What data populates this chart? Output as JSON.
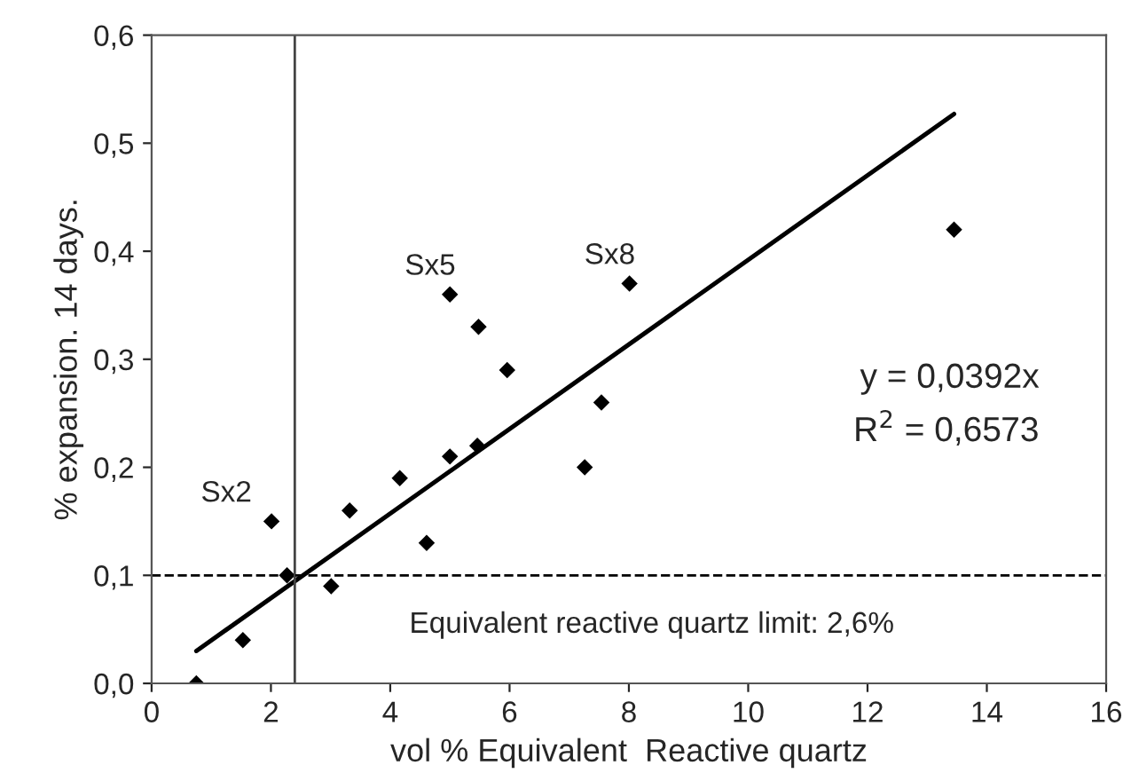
{
  "chart_data": {
    "type": "scatter",
    "xlabel": "vol % Equivalent  Reactive quartz",
    "ylabel": "% expansion. 14 days.",
    "series": [
      {
        "color": "#000000",
        "marker": "diamond",
        "x": [
          0.75,
          1.53,
          2.01,
          2.27,
          3.01,
          3.32,
          4.16,
          4.61,
          5.0,
          5.0,
          5.48,
          5.46,
          5.96,
          7.26,
          7.54,
          8.01,
          13.45
        ],
        "values": [
          0.0,
          0.04,
          0.15,
          0.1,
          0.09,
          0.16,
          0.19,
          0.13,
          0.21,
          0.36,
          0.33,
          0.22,
          0.29,
          0.2,
          0.26,
          0.37,
          0.42
        ]
      },
      {
        "type": "line",
        "color": "#000000",
        "marker": "none",
        "line_style": "solid",
        "x": [
          0.75,
          13.45
        ],
        "values": [
          0.03,
          0.527
        ]
      }
    ],
    "xlim": [
      0,
      16
    ],
    "xticks": [
      0,
      2,
      4,
      6,
      8,
      10,
      12,
      14,
      16
    ],
    "ylim": [
      0,
      0.6
    ],
    "yticks": [
      {
        "value": 0,
        "label": "0,0"
      },
      {
        "value": 0.1,
        "label": "0,1"
      },
      {
        "value": 0.2,
        "label": "0,2"
      },
      {
        "value": 0.3,
        "label": "0,3"
      },
      {
        "value": 0.4,
        "label": "0,4"
      },
      {
        "value": 0.5,
        "label": "0,5"
      },
      {
        "value": 0.6,
        "label": "0,6"
      }
    ],
    "ref_lines": [
      {
        "axis": "x",
        "value": 2.4,
        "color": "#444444",
        "line_style": "solid"
      },
      {
        "axis": "y",
        "value": 0.1,
        "color": "#000000",
        "line_style": "dashed"
      }
    ],
    "annotations": [
      {
        "text": "Sx2",
        "x": 2.01,
        "y": 0.15
      },
      {
        "text": "Sx5",
        "x": 5.0,
        "y": 0.36
      },
      {
        "text": "Sx8",
        "x": 8.01,
        "y": 0.37
      },
      "y = 0,0392x",
      "R$^{2}$ = 0,6573",
      "Equivalent reactive quartz limit: 2,6%"
    ],
    "grid": false,
    "legend": false
  }
}
